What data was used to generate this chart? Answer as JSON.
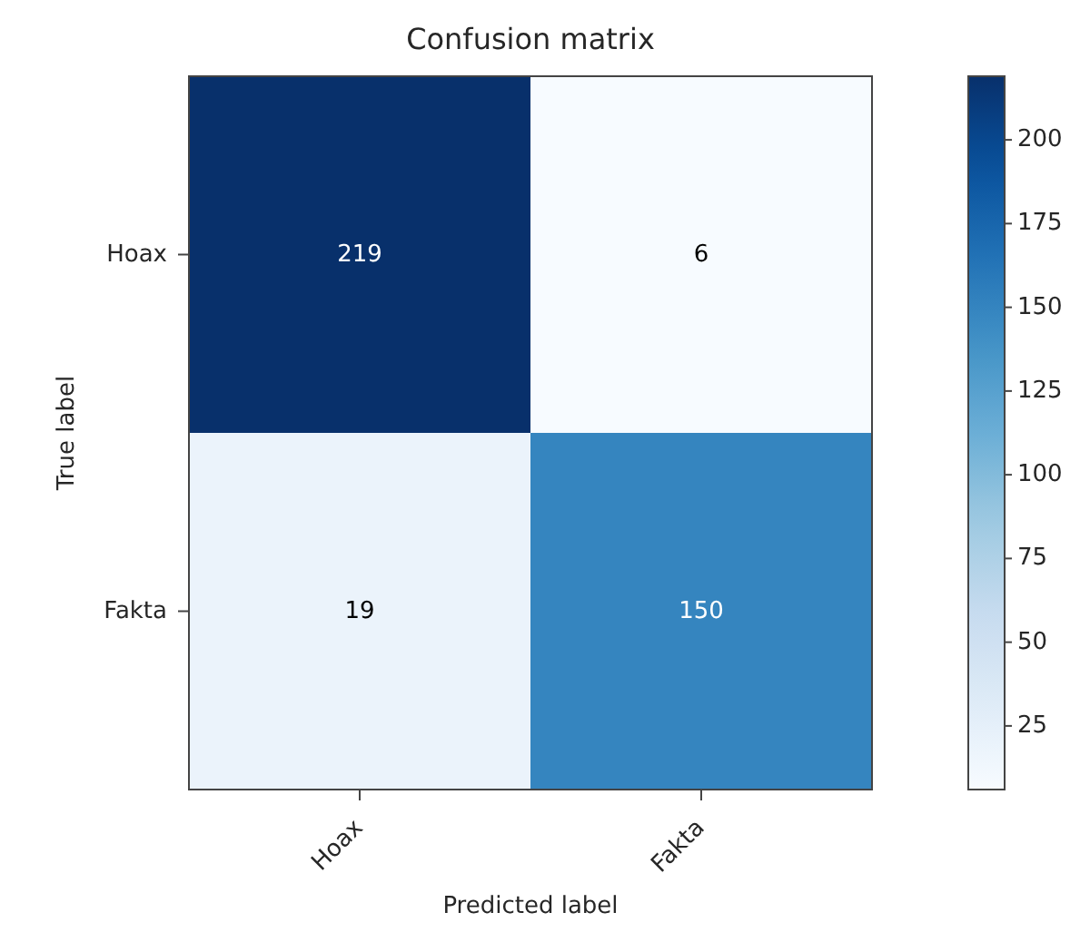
{
  "chart_data": {
    "type": "heatmap",
    "title": "Confusion matrix",
    "xlabel": "Predicted label",
    "ylabel": "True label",
    "categories": [
      "Hoax",
      "Fakta"
    ],
    "y_categories": [
      "Hoax",
      "Fakta"
    ],
    "cells": [
      [
        219,
        6
      ],
      [
        19,
        150
      ]
    ],
    "data_labels": true,
    "clim": [
      6,
      219
    ],
    "cticks": [
      25,
      50,
      75,
      100,
      125,
      150,
      175,
      200
    ]
  }
}
